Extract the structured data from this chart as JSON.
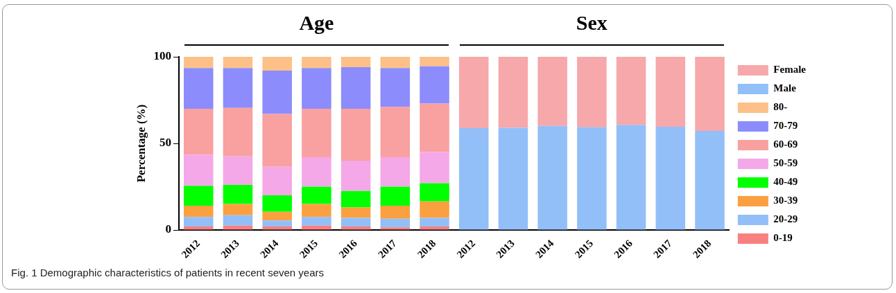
{
  "chart_data": {
    "type": "bar",
    "stacked": true,
    "ylabel": "Percentage (%)",
    "ylim": [
      0,
      100
    ],
    "yticks": [
      0,
      50,
      100
    ],
    "grid": false,
    "legend": "right",
    "categories": [
      "2012",
      "2013",
      "2014",
      "2015",
      "2016",
      "2017",
      "2018",
      "2012",
      "2013",
      "2014",
      "2015",
      "2016",
      "2017",
      "2018"
    ],
    "annotations": [
      "Age",
      "Sex",
      "Fig. 1 Demographic characteristics of patients in recent seven years"
    ],
    "series": [
      {
        "name": "0-19",
        "color": "#f88080",
        "values": [
          2,
          2.5,
          2,
          2.5,
          2,
          1.5,
          2,
          null,
          null,
          null,
          null,
          null,
          null,
          null
        ]
      },
      {
        "name": "20-29",
        "color": "#93bff8",
        "values": [
          5.5,
          6,
          3.5,
          5,
          5,
          5,
          5,
          null,
          null,
          null,
          null,
          null,
          null,
          null
        ]
      },
      {
        "name": "30-39",
        "color": "#fba040",
        "values": [
          6.5,
          6.5,
          5,
          7.5,
          6,
          7.5,
          9.5,
          null,
          null,
          null,
          null,
          null,
          null,
          null
        ]
      },
      {
        "name": "40-49",
        "color": "#00ff00",
        "values": [
          11.5,
          11,
          9.5,
          10,
          9.5,
          11,
          10.5,
          null,
          null,
          null,
          null,
          null,
          null,
          null
        ]
      },
      {
        "name": "50-59",
        "color": "#f4a8e8",
        "values": [
          18,
          16.5,
          16.5,
          17,
          17.5,
          17,
          18,
          null,
          null,
          null,
          null,
          null,
          null,
          null
        ]
      },
      {
        "name": "60-69",
        "color": "#f9a0a0",
        "values": [
          26.5,
          28,
          30.5,
          28,
          30,
          29,
          28,
          null,
          null,
          null,
          null,
          null,
          null,
          null
        ]
      },
      {
        "name": "70-79",
        "color": "#8c8cfc",
        "values": [
          23.5,
          23,
          25,
          23.5,
          24,
          22.5,
          21.5,
          null,
          null,
          null,
          null,
          null,
          null,
          null
        ]
      },
      {
        "name": "80-",
        "color": "#fcc088",
        "values": [
          6.5,
          6.5,
          8,
          6.5,
          6,
          6.5,
          5.5,
          null,
          null,
          null,
          null,
          null,
          null,
          null
        ]
      },
      {
        "name": "Male",
        "color": "#93bff8",
        "values": [
          null,
          null,
          null,
          null,
          null,
          null,
          null,
          58.8,
          59,
          60.1,
          59.3,
          60.7,
          59.6,
          57.2
        ]
      },
      {
        "name": "Female",
        "color": "#f6a8aa",
        "values": [
          null,
          null,
          null,
          null,
          null,
          null,
          null,
          41.2,
          41,
          39.9,
          40.7,
          39.3,
          40.4,
          42.8
        ]
      }
    ]
  }
}
